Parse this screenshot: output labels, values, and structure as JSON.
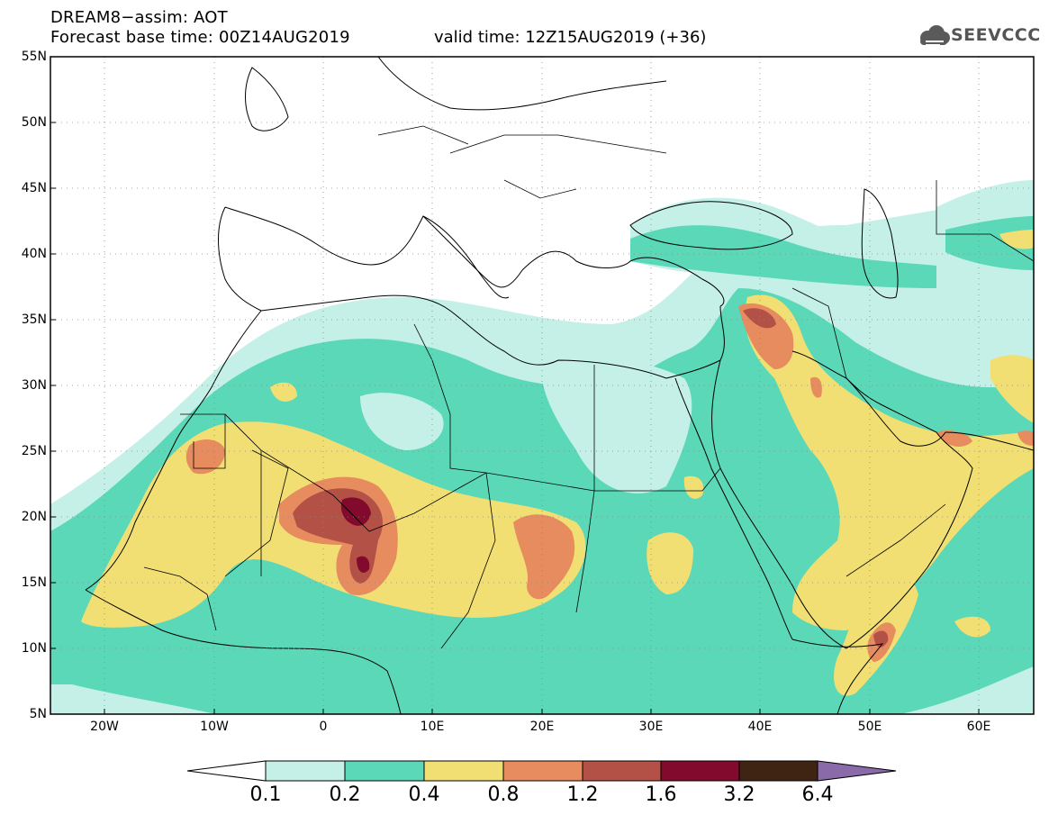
{
  "header": {
    "title_line1": "DREAM8−assim: AOT",
    "title_line2": "Forecast base time: 00Z14AUG2019",
    "valid_time": "valid time: 12Z15AUG2019 (+36)",
    "logo_text": "SEEVCCC"
  },
  "map": {
    "lon_range": [
      -25,
      65
    ],
    "lat_range": [
      5,
      55
    ],
    "lat_ticks": [
      "55N",
      "50N",
      "45N",
      "40N",
      "35N",
      "30N",
      "25N",
      "20N",
      "15N",
      "10N",
      "5N"
    ],
    "lon_ticks": [
      "20W",
      "10W",
      "0",
      "10E",
      "20E",
      "30E",
      "40E",
      "50E",
      "60E"
    ],
    "grid": "dotted"
  },
  "colorbar": {
    "labels": [
      "0.1",
      "0.2",
      "0.4",
      "0.8",
      "1.2",
      "1.6",
      "3.2",
      "6.4"
    ],
    "colors": [
      "#ffffff",
      "#c4f0e8",
      "#5ad8b8",
      "#f2df73",
      "#e78c5f",
      "#b35147",
      "#820a2c",
      "#3f2414",
      "#8a6aa8"
    ]
  }
}
